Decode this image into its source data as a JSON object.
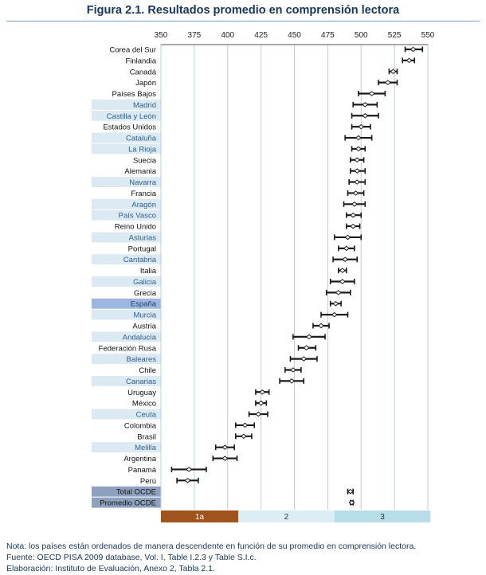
{
  "title": "Figura 2.1. Resultados promedio en comprensión lectora",
  "chart_data": {
    "type": "error-bar",
    "xlim": [
      350,
      550
    ],
    "xticks": [
      350,
      375,
      400,
      425,
      450,
      475,
      500,
      525,
      550
    ],
    "grid": true,
    "rows": [
      {
        "label": "Corea del Sur",
        "value": 539,
        "low": 533,
        "high": 546,
        "band": "none"
      },
      {
        "label": "Finlandia",
        "value": 536,
        "low": 531,
        "high": 540,
        "band": "none"
      },
      {
        "label": "Canadá",
        "value": 524,
        "low": 521,
        "high": 527,
        "band": "none"
      },
      {
        "label": "Japón",
        "value": 520,
        "low": 513,
        "high": 527,
        "band": "none"
      },
      {
        "label": "Países Bajos",
        "value": 508,
        "low": 498,
        "high": 518,
        "band": "none"
      },
      {
        "label": "Madrid",
        "value": 503,
        "low": 494,
        "high": 512,
        "band": "region"
      },
      {
        "label": "Castilla y León",
        "value": 503,
        "low": 493,
        "high": 513,
        "band": "region"
      },
      {
        "label": "Estados Unidos",
        "value": 500,
        "low": 493,
        "high": 507,
        "band": "none"
      },
      {
        "label": "Cataluña",
        "value": 498,
        "low": 488,
        "high": 508,
        "band": "region"
      },
      {
        "label": "La Rioja",
        "value": 498,
        "low": 493,
        "high": 503,
        "band": "region"
      },
      {
        "label": "Suecia",
        "value": 497,
        "low": 492,
        "high": 502,
        "band": "none"
      },
      {
        "label": "Alemania",
        "value": 497,
        "low": 492,
        "high": 503,
        "band": "none"
      },
      {
        "label": "Navarra",
        "value": 497,
        "low": 491,
        "high": 503,
        "band": "region"
      },
      {
        "label": "Francia",
        "value": 496,
        "low": 490,
        "high": 502,
        "band": "none"
      },
      {
        "label": "Aragón",
        "value": 495,
        "low": 487,
        "high": 503,
        "band": "region"
      },
      {
        "label": "País Vasco",
        "value": 494,
        "low": 489,
        "high": 500,
        "band": "region"
      },
      {
        "label": "Reino Unido",
        "value": 494,
        "low": 489,
        "high": 499,
        "band": "none"
      },
      {
        "label": "Asturias",
        "value": 490,
        "low": 480,
        "high": 500,
        "band": "region"
      },
      {
        "label": "Portugal",
        "value": 489,
        "low": 483,
        "high": 495,
        "band": "none"
      },
      {
        "label": "Cantabria",
        "value": 488,
        "low": 479,
        "high": 497,
        "band": "region"
      },
      {
        "label": "Italia",
        "value": 486,
        "low": 483,
        "high": 489,
        "band": "none"
      },
      {
        "label": "Galicia",
        "value": 486,
        "low": 477,
        "high": 495,
        "band": "region"
      },
      {
        "label": "Grecia",
        "value": 483,
        "low": 474,
        "high": 492,
        "band": "none"
      },
      {
        "label": "España",
        "value": 481,
        "low": 477,
        "high": 485,
        "band": "spain"
      },
      {
        "label": "Murcia",
        "value": 480,
        "low": 470,
        "high": 490,
        "band": "region"
      },
      {
        "label": "Austria",
        "value": 470,
        "low": 464,
        "high": 476,
        "band": "none"
      },
      {
        "label": "Andalucía",
        "value": 461,
        "low": 449,
        "high": 473,
        "band": "region"
      },
      {
        "label": "Federación Rusa",
        "value": 459,
        "low": 453,
        "high": 466,
        "band": "none"
      },
      {
        "label": "Baleares",
        "value": 457,
        "low": 447,
        "high": 467,
        "band": "region"
      },
      {
        "label": "Chile",
        "value": 449,
        "low": 443,
        "high": 455,
        "band": "none"
      },
      {
        "label": "Canarias",
        "value": 448,
        "low": 439,
        "high": 457,
        "band": "region"
      },
      {
        "label": "Uruguay",
        "value": 426,
        "low": 421,
        "high": 431,
        "band": "none"
      },
      {
        "label": "México",
        "value": 425,
        "low": 421,
        "high": 429,
        "band": "none"
      },
      {
        "label": "Ceuta",
        "value": 423,
        "low": 416,
        "high": 430,
        "band": "region"
      },
      {
        "label": "Colombia",
        "value": 413,
        "low": 406,
        "high": 420,
        "band": "none"
      },
      {
        "label": "Brasil",
        "value": 412,
        "low": 406,
        "high": 418,
        "band": "none"
      },
      {
        "label": "Melilla",
        "value": 398,
        "low": 391,
        "high": 405,
        "band": "region"
      },
      {
        "label": "Argentina",
        "value": 398,
        "low": 389,
        "high": 407,
        "band": "none"
      },
      {
        "label": "Panamá",
        "value": 371,
        "low": 358,
        "high": 384,
        "band": "none"
      },
      {
        "label": "Perú",
        "value": 370,
        "low": 362,
        "high": 378,
        "band": "none"
      },
      {
        "label": "Total OCDE",
        "value": 492,
        "low": 490,
        "high": 494,
        "band": "ocde"
      },
      {
        "label": "Promedio OCDE",
        "value": 493,
        "low": 492,
        "high": 494,
        "band": "ocde"
      }
    ],
    "levels": [
      {
        "label": "1a",
        "from": 350,
        "to": 408,
        "color": "#a0531c"
      },
      {
        "label": "2",
        "from": 408,
        "to": 480,
        "color": "#daeef3"
      },
      {
        "label": "3",
        "from": 480,
        "to": 552,
        "color": "#b7dde8"
      }
    ]
  },
  "colors": {
    "title": "#17365d",
    "region_band": "#dbe9f2",
    "spain_band": "#9db8e0",
    "ocde_band": "#8ea2bf",
    "grid": "#b8cde8",
    "error_bar": "#1a1a1a"
  },
  "notes": {
    "nota": "Nota: los países están ordenados de manera descendente en función de su promedio en comprensión lectora.",
    "fuente": "Fuente: OECD PISA 2009 database, Vol. I,  Table I.2.3 y Table S.I.c.",
    "elaboracion": "Elaboración: Instituto de Evaluación, Anexo 2, Tabla 2.1."
  }
}
